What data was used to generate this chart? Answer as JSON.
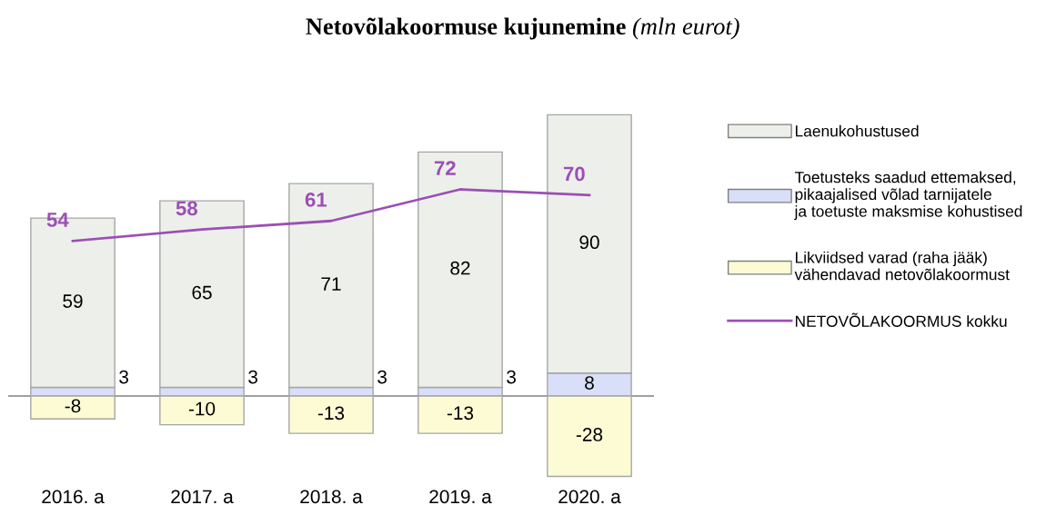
{
  "chart_data": {
    "type": "bar",
    "title": "Netovõlakoormuse kujunemine (mln eurot)",
    "categories": [
      "2016. a",
      "2017. a",
      "2018. a",
      "2019. a",
      "2020. a"
    ],
    "stacked": true,
    "data_labels": true,
    "legend": "right",
    "grid": false,
    "series": [
      {
        "name": "Toetusteks saadud ettemaksed,\npikaajalised võlad tarnijatele\nja toetuste maksmise kohustised",
        "color": "#d9dff9",
        "values": [
          3,
          3,
          3,
          3,
          8
        ]
      },
      {
        "name": "Laenukohustused",
        "color": "#edf0ea",
        "values": [
          59,
          65,
          71,
          82,
          90
        ]
      },
      {
        "name": "Likviidsed varad (raha jääk)\nvähendavad netovõlakoormust",
        "color": "#fdfbd4",
        "values": [
          -8,
          -10,
          -13,
          -13,
          -28
        ]
      },
      {
        "name": "NETOVÕLAKOORMUS kokku",
        "type": "line",
        "color": "#9b4fb5",
        "values": [
          54,
          58,
          61,
          72,
          70
        ]
      }
    ]
  }
}
